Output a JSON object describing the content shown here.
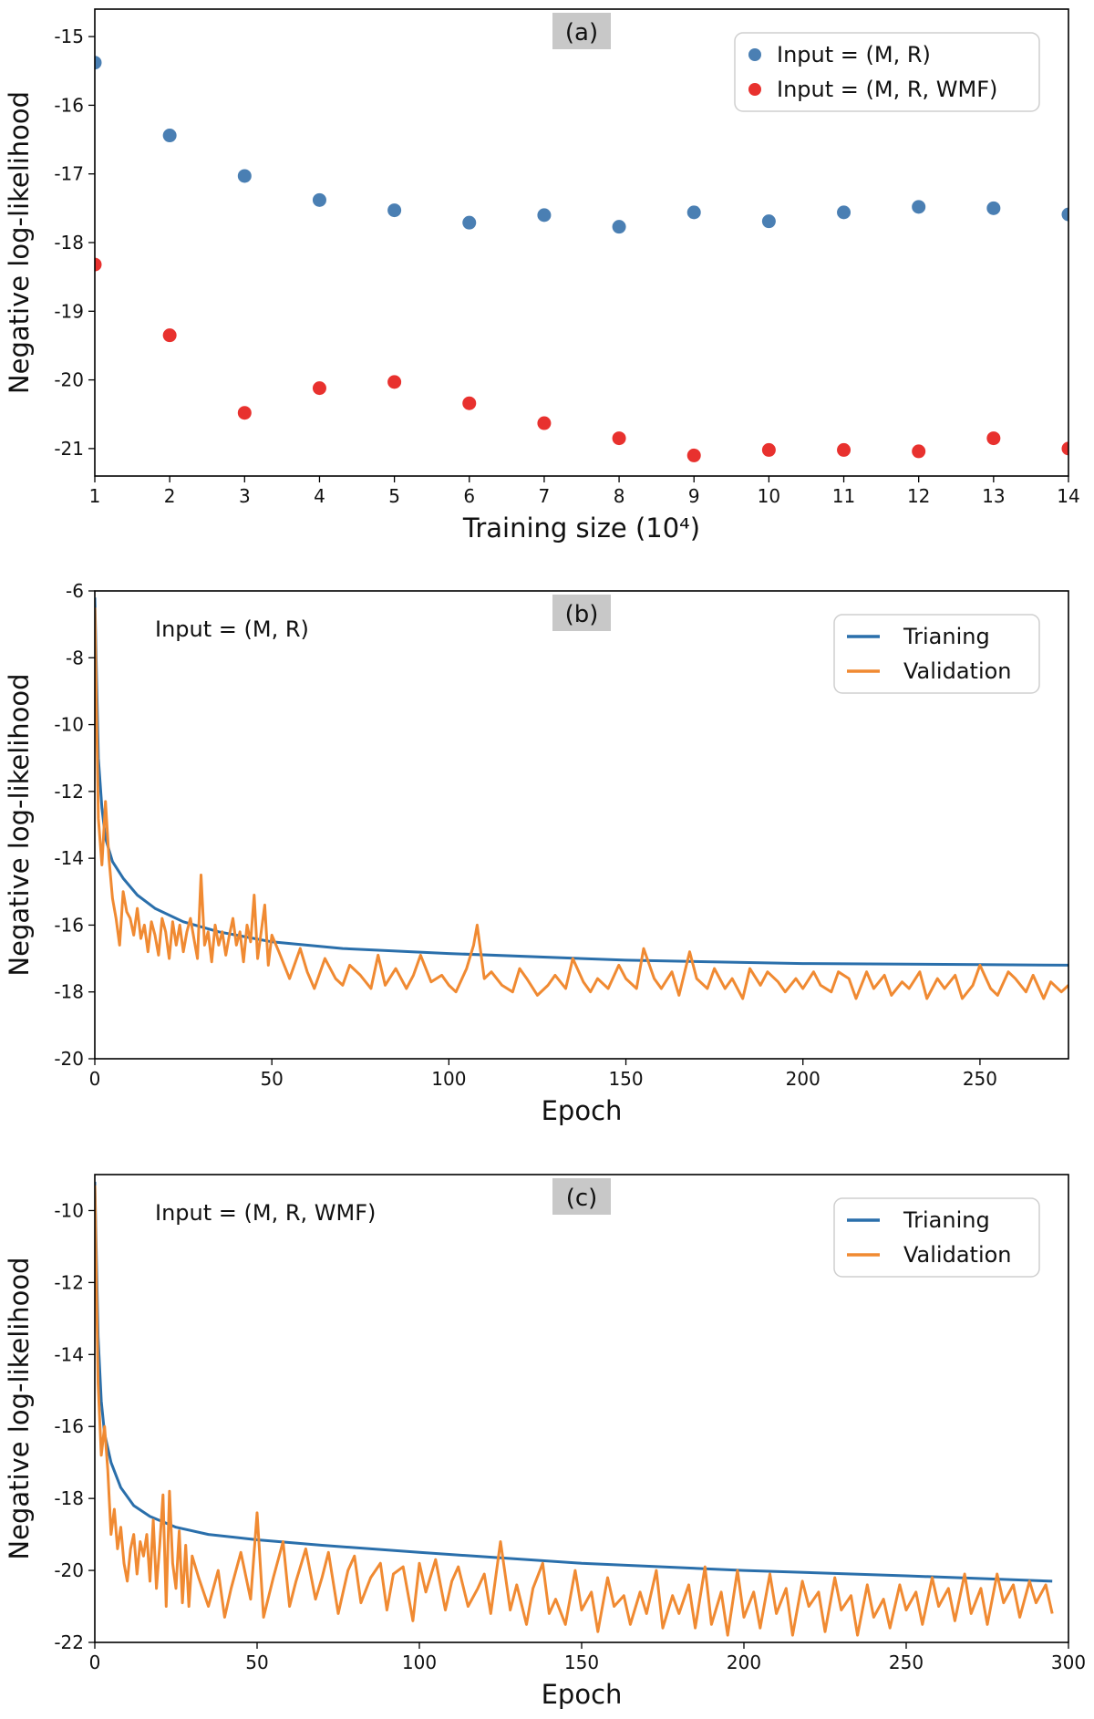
{
  "chart_data": [
    {
      "type": "scatter",
      "panel_label": "(a)",
      "xlabel": "Training size (10⁴)",
      "ylabel": "Negative log-likelihood",
      "xlim": [
        1,
        14
      ],
      "ylim": [
        -21.4,
        -14.6
      ],
      "xticks": [
        1,
        2,
        3,
        4,
        5,
        6,
        7,
        8,
        9,
        10,
        11,
        12,
        13,
        14
      ],
      "yticks": [
        -21,
        -20,
        -19,
        -18,
        -17,
        -16,
        -15
      ],
      "legend_position": "top-right",
      "x": [
        1,
        2,
        3,
        4,
        5,
        6,
        7,
        8,
        9,
        10,
        11,
        12,
        13,
        14
      ],
      "series": [
        {
          "name": "Input = (M, R)",
          "color": "#4a7fb3",
          "values": [
            -15.38,
            -16.44,
            -17.03,
            -17.38,
            -17.53,
            -17.71,
            -17.6,
            -17.77,
            -17.56,
            -17.69,
            -17.56,
            -17.48,
            -17.5,
            -17.59
          ]
        },
        {
          "name": "Input = (M, R, WMF)",
          "color": "#e8312e",
          "values": [
            -18.32,
            -19.35,
            -20.48,
            -20.12,
            -20.03,
            -20.34,
            -20.63,
            -20.85,
            -21.1,
            -21.02,
            -21.02,
            -21.04,
            -20.85,
            -21.0
          ]
        }
      ]
    },
    {
      "type": "line",
      "panel_label": "(b)",
      "annotation": "Input = (M, R)",
      "xlabel": "Epoch",
      "ylabel": "Negative log-likelihood",
      "xlim": [
        0,
        275
      ],
      "ylim": [
        -20,
        -6
      ],
      "xticks": [
        0,
        50,
        100,
        150,
        200,
        250
      ],
      "yticks": [
        -20,
        -18,
        -16,
        -14,
        -12,
        -10,
        -8,
        -6
      ],
      "legend_position": "top-right",
      "series": [
        {
          "name": "Trianing",
          "color": "#2a6fab",
          "x": [
            0,
            1,
            2,
            3,
            5,
            8,
            12,
            17,
            25,
            35,
            50,
            70,
            100,
            150,
            200,
            250,
            275
          ],
          "values": [
            -6.2,
            -11.0,
            -12.5,
            -13.4,
            -14.1,
            -14.6,
            -15.1,
            -15.5,
            -15.9,
            -16.2,
            -16.5,
            -16.7,
            -16.85,
            -17.05,
            -17.15,
            -17.18,
            -17.2
          ]
        },
        {
          "name": "Validation",
          "color": "#f08a32",
          "x": [
            0,
            1,
            2,
            3,
            4,
            5,
            6,
            7,
            8,
            9,
            10,
            11,
            12,
            13,
            14,
            15,
            16,
            17,
            18,
            19,
            20,
            21,
            22,
            23,
            24,
            25,
            26,
            27,
            28,
            29,
            30,
            31,
            32,
            33,
            34,
            35,
            36,
            37,
            38,
            39,
            40,
            41,
            42,
            43,
            44,
            45,
            46,
            47,
            48,
            49,
            50,
            52,
            55,
            58,
            60,
            62,
            65,
            68,
            70,
            72,
            75,
            78,
            80,
            82,
            85,
            88,
            90,
            92,
            95,
            98,
            100,
            102,
            105,
            107,
            108,
            110,
            112,
            115,
            118,
            120,
            122,
            125,
            128,
            130,
            133,
            135,
            138,
            140,
            142,
            145,
            148,
            150,
            153,
            155,
            158,
            160,
            163,
            165,
            168,
            170,
            173,
            175,
            178,
            180,
            183,
            185,
            188,
            190,
            193,
            195,
            198,
            200,
            203,
            205,
            208,
            210,
            213,
            215,
            218,
            220,
            223,
            225,
            228,
            230,
            233,
            235,
            238,
            240,
            243,
            245,
            248,
            250,
            253,
            255,
            258,
            260,
            263,
            265,
            268,
            270,
            273,
            275
          ],
          "values": [
            -6.5,
            -12.8,
            -14.2,
            -12.3,
            -14.0,
            -15.2,
            -15.8,
            -16.6,
            -15.0,
            -15.6,
            -15.8,
            -16.3,
            -15.5,
            -16.4,
            -16.0,
            -16.8,
            -15.9,
            -16.3,
            -16.9,
            -15.8,
            -16.2,
            -17.0,
            -15.9,
            -16.6,
            -16.0,
            -16.8,
            -16.2,
            -15.8,
            -16.4,
            -17.0,
            -14.5,
            -16.6,
            -16.2,
            -17.1,
            -16.0,
            -16.6,
            -16.2,
            -16.9,
            -16.3,
            -15.8,
            -16.6,
            -16.2,
            -17.1,
            -16.0,
            -16.5,
            -15.1,
            -17.0,
            -16.2,
            -15.4,
            -17.2,
            -16.3,
            -16.8,
            -17.6,
            -16.7,
            -17.4,
            -17.9,
            -17.0,
            -17.6,
            -17.8,
            -17.2,
            -17.5,
            -17.9,
            -16.9,
            -17.8,
            -17.3,
            -17.9,
            -17.5,
            -16.9,
            -17.7,
            -17.5,
            -17.8,
            -18.0,
            -17.3,
            -16.6,
            -16.0,
            -17.6,
            -17.4,
            -17.8,
            -18.0,
            -17.3,
            -17.6,
            -18.1,
            -17.8,
            -17.5,
            -17.9,
            -17.0,
            -17.7,
            -18.0,
            -17.6,
            -17.9,
            -17.2,
            -17.6,
            -17.9,
            -16.7,
            -17.6,
            -17.9,
            -17.4,
            -18.1,
            -16.8,
            -17.6,
            -17.9,
            -17.3,
            -17.9,
            -17.6,
            -18.2,
            -17.3,
            -17.8,
            -17.4,
            -17.7,
            -18.0,
            -17.6,
            -17.9,
            -17.4,
            -17.8,
            -18.0,
            -17.4,
            -17.6,
            -18.2,
            -17.4,
            -17.9,
            -17.5,
            -18.1,
            -17.7,
            -17.9,
            -17.4,
            -18.2,
            -17.6,
            -17.9,
            -17.5,
            -18.2,
            -17.8,
            -17.2,
            -17.9,
            -18.1,
            -17.4,
            -17.6,
            -18.0,
            -17.5,
            -18.2,
            -17.7,
            -18.0,
            -17.8
          ]
        }
      ]
    },
    {
      "type": "line",
      "panel_label": "(c)",
      "annotation": "Input = (M, R, WMF)",
      "xlabel": "Epoch",
      "ylabel": "Negative log-likelihood",
      "xlim": [
        0,
        300
      ],
      "ylim": [
        -22,
        -9
      ],
      "xticks": [
        0,
        50,
        100,
        150,
        200,
        250,
        300
      ],
      "yticks": [
        -22,
        -20,
        -18,
        -16,
        -14,
        -12,
        -10
      ],
      "legend_position": "top-right",
      "series": [
        {
          "name": "Trianing",
          "color": "#2a6fab",
          "x": [
            0,
            1,
            2,
            3,
            5,
            8,
            12,
            17,
            25,
            35,
            50,
            70,
            100,
            150,
            200,
            250,
            295
          ],
          "values": [
            -9.2,
            -13.5,
            -15.3,
            -16.2,
            -17.0,
            -17.7,
            -18.2,
            -18.5,
            -18.8,
            -19.0,
            -19.15,
            -19.3,
            -19.5,
            -19.8,
            -20.0,
            -20.15,
            -20.3
          ]
        },
        {
          "name": "Validation",
          "color": "#f08a32",
          "x": [
            0,
            1,
            2,
            3,
            4,
            5,
            6,
            7,
            8,
            9,
            10,
            11,
            12,
            13,
            14,
            15,
            16,
            17,
            18,
            19,
            20,
            21,
            22,
            23,
            24,
            25,
            26,
            27,
            28,
            29,
            30,
            32,
            35,
            38,
            40,
            42,
            45,
            48,
            50,
            52,
            55,
            58,
            60,
            62,
            65,
            68,
            70,
            72,
            75,
            78,
            80,
            82,
            85,
            88,
            90,
            92,
            95,
            98,
            100,
            102,
            105,
            108,
            110,
            112,
            115,
            118,
            120,
            122,
            125,
            128,
            130,
            133,
            135,
            138,
            140,
            142,
            145,
            148,
            150,
            153,
            155,
            158,
            160,
            163,
            165,
            168,
            170,
            173,
            175,
            178,
            180,
            183,
            185,
            188,
            190,
            193,
            195,
            198,
            200,
            203,
            205,
            208,
            210,
            213,
            215,
            218,
            220,
            223,
            225,
            228,
            230,
            233,
            235,
            238,
            240,
            243,
            245,
            248,
            250,
            253,
            255,
            258,
            260,
            263,
            265,
            268,
            270,
            273,
            275,
            278,
            280,
            283,
            285,
            288,
            290,
            293,
            295
          ],
          "values": [
            -9.3,
            -14.8,
            -16.8,
            -16.0,
            -17.2,
            -19.0,
            -18.3,
            -19.4,
            -18.8,
            -19.8,
            -20.3,
            -19.4,
            -19.0,
            -20.1,
            -19.2,
            -19.6,
            -19.0,
            -20.3,
            -18.6,
            -20.5,
            -19.3,
            -17.9,
            -21.0,
            -17.8,
            -19.8,
            -20.5,
            -18.9,
            -20.9,
            -19.3,
            -21.0,
            -19.6,
            -20.2,
            -21.0,
            -20.0,
            -21.3,
            -20.5,
            -19.5,
            -20.8,
            -18.4,
            -21.3,
            -20.2,
            -19.2,
            -21.0,
            -20.3,
            -19.4,
            -20.8,
            -20.2,
            -19.5,
            -21.2,
            -20.0,
            -19.6,
            -20.9,
            -20.2,
            -19.8,
            -21.1,
            -20.1,
            -19.9,
            -21.4,
            -19.8,
            -20.6,
            -19.7,
            -21.1,
            -20.3,
            -19.9,
            -21.0,
            -20.5,
            -20.1,
            -21.2,
            -19.2,
            -21.1,
            -20.4,
            -21.5,
            -20.5,
            -19.8,
            -21.2,
            -20.8,
            -21.5,
            -20.0,
            -21.1,
            -20.6,
            -21.7,
            -20.2,
            -21.0,
            -20.7,
            -21.5,
            -20.6,
            -21.2,
            -20.0,
            -21.6,
            -20.7,
            -21.2,
            -20.4,
            -21.6,
            -19.9,
            -21.5,
            -20.6,
            -21.8,
            -20.0,
            -21.3,
            -20.6,
            -21.6,
            -20.1,
            -21.2,
            -20.5,
            -21.8,
            -20.3,
            -21.0,
            -20.6,
            -21.7,
            -20.2,
            -21.1,
            -20.7,
            -21.8,
            -20.4,
            -21.3,
            -20.8,
            -21.6,
            -20.4,
            -21.1,
            -20.6,
            -21.5,
            -20.2,
            -21.0,
            -20.5,
            -21.4,
            -20.1,
            -21.2,
            -20.5,
            -21.5,
            -20.1,
            -20.9,
            -20.4,
            -21.3,
            -20.3,
            -20.9,
            -20.4,
            -21.2
          ]
        }
      ]
    }
  ]
}
